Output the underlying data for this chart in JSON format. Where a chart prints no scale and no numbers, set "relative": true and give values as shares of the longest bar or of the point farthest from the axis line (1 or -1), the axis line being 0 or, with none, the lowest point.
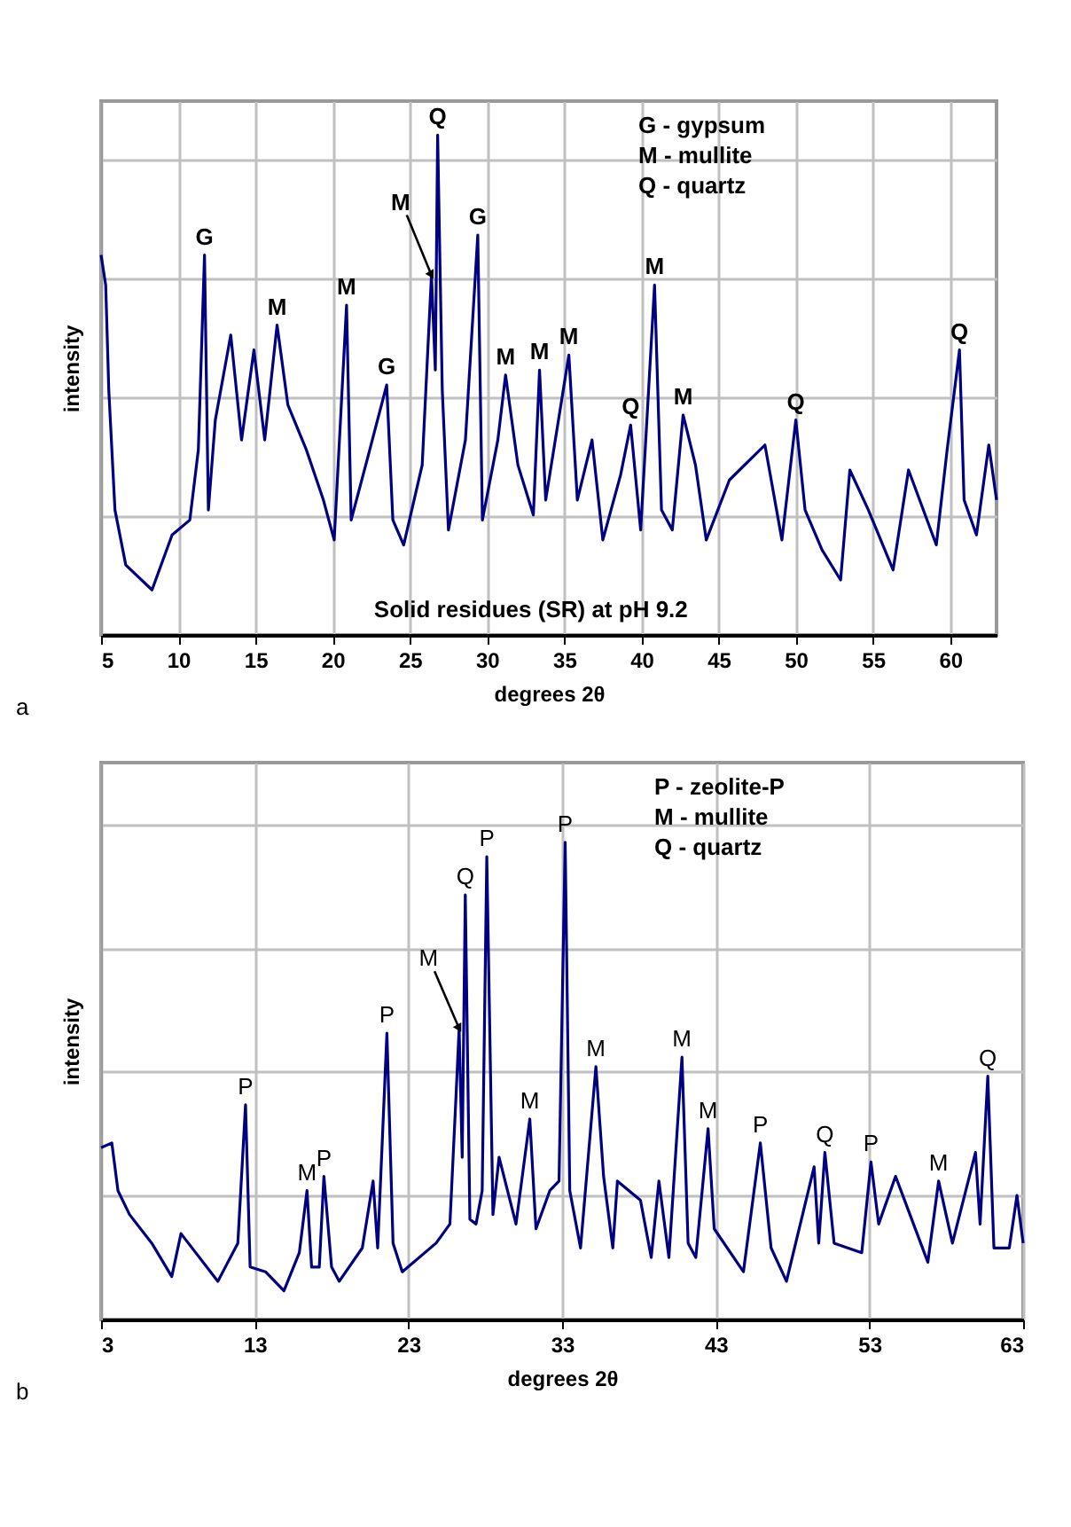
{
  "chart_data": [
    {
      "type": "line",
      "title": "a",
      "xlabel": "degrees 2θ",
      "ylabel": "intensity",
      "relative": true,
      "color": "#000080",
      "grid": true,
      "xlim": [
        5,
        63
      ],
      "xticks": [
        5,
        10,
        15,
        20,
        25,
        30,
        35,
        40,
        45,
        50,
        55,
        60
      ],
      "x": [
        5.0,
        5.3,
        5.5,
        5.9,
        6.6,
        8.3,
        9.6,
        10.75,
        11.3,
        11.7,
        11.95,
        12.4,
        13.4,
        14.1,
        14.9,
        15.6,
        16.4,
        17.1,
        18.3,
        19.4,
        20.1,
        20.9,
        21.2,
        22.4,
        23.5,
        23.9,
        24.6,
        25.8,
        26.4,
        26.65,
        26.8,
        27.1,
        27.5,
        28.6,
        29.4,
        29.7,
        30.7,
        31.2,
        32.0,
        33.0,
        33.4,
        33.8,
        35.3,
        35.85,
        36.8,
        37.5,
        38.65,
        39.3,
        39.95,
        40.85,
        41.3,
        42.0,
        42.7,
        43.5,
        44.2,
        45.7,
        48.0,
        49.1,
        50.0,
        50.6,
        51.7,
        52.9,
        53.5,
        54.7,
        56.3,
        57.3,
        59.1,
        59.8,
        60.6,
        60.9,
        61.7,
        62.5,
        63.0
      ],
      "values": [
        0.76,
        0.7,
        0.49,
        0.25,
        0.14,
        0.09,
        0.2,
        0.23,
        0.37,
        0.76,
        0.25,
        0.43,
        0.6,
        0.39,
        0.57,
        0.39,
        0.62,
        0.46,
        0.37,
        0.27,
        0.19,
        0.66,
        0.23,
        0.37,
        0.5,
        0.23,
        0.18,
        0.34,
        0.72,
        0.53,
        1,
        0.49,
        0.21,
        0.39,
        0.8,
        0.23,
        0.39,
        0.52,
        0.34,
        0.24,
        0.53,
        0.27,
        0.56,
        0.27,
        0.39,
        0.19,
        0.32,
        0.42,
        0.21,
        0.7,
        0.25,
        0.21,
        0.44,
        0.34,
        0.19,
        0.31,
        0.38,
        0.19,
        0.43,
        0.25,
        0.17,
        0.11,
        0.33,
        0.25,
        0.13,
        0.33,
        0.18,
        0.37,
        0.57,
        0.27,
        0.2,
        0.38,
        0.27
      ],
      "annotations": [
        "G - gypsum",
        "M - mullite",
        "Q - quartz",
        "Solid residues (SR) at pH 9.2",
        {
          "text": "G",
          "x": 11.7,
          "y": 0.76
        },
        {
          "text": "M",
          "x": 16.4,
          "y": 0.62
        },
        {
          "text": "M",
          "x": 20.9,
          "y": 0.66
        },
        {
          "text": "G",
          "x": 23.5,
          "y": 0.5
        },
        {
          "text": "M",
          "x": 26.4,
          "y": 0.72
        },
        {
          "text": "Q",
          "x": 26.8,
          "y": 1
        },
        {
          "text": "G",
          "x": 29.4,
          "y": 0.8
        },
        {
          "text": "M",
          "x": 31.2,
          "y": 0.52
        },
        {
          "text": "M",
          "x": 33.4,
          "y": 0.53
        },
        {
          "text": "M",
          "x": 35.3,
          "y": 0.56
        },
        {
          "text": "Q",
          "x": 39.3,
          "y": 0.42
        },
        {
          "text": "M",
          "x": 40.85,
          "y": 0.7
        },
        {
          "text": "M",
          "x": 42.7,
          "y": 0.44
        },
        {
          "text": "Q",
          "x": 50.0,
          "y": 0.43
        },
        {
          "text": "Q",
          "x": 60.6,
          "y": 0.57
        }
      ]
    },
    {
      "type": "line",
      "title": "b",
      "xlabel": "degrees 2θ",
      "ylabel": "intensity",
      "relative": true,
      "color": "#000080",
      "grid": true,
      "xlim": [
        3,
        63
      ],
      "xticks": [
        3,
        13,
        23,
        33,
        43,
        53,
        63
      ],
      "x": [
        3.0,
        3.7,
        4.1,
        4.85,
        6.3,
        7.6,
        8.2,
        10.6,
        11.9,
        12.4,
        12.7,
        13.7,
        14.9,
        15.9,
        16.4,
        16.7,
        17.2,
        17.5,
        18.0,
        18.5,
        20.0,
        20.7,
        21.0,
        21.6,
        22.0,
        22.6,
        24.8,
        25.7,
        26.1,
        26.3,
        26.5,
        26.7,
        27.0,
        27.4,
        27.8,
        28.1,
        28.5,
        28.9,
        30.0,
        30.9,
        31.3,
        32.2,
        32.8,
        33.2,
        33.5,
        34.2,
        35.2,
        35.7,
        36.3,
        36.6,
        38.1,
        38.8,
        39.3,
        39.95,
        40.8,
        41.2,
        41.7,
        42.5,
        42.9,
        44.8,
        45.9,
        46.6,
        47.6,
        49.4,
        49.7,
        50.1,
        50.7,
        52.5,
        53.1,
        53.6,
        54.7,
        56.8,
        57.5,
        58.4,
        59.9,
        60.2,
        60.7,
        61.1,
        62.1,
        62.6,
        63.0
      ],
      "values": [
        0.36,
        0.37,
        0.27,
        0.22,
        0.16,
        0.09,
        0.18,
        0.08,
        0.16,
        0.45,
        0.11,
        0.1,
        0.06,
        0.14,
        0.27,
        0.11,
        0.11,
        0.3,
        0.11,
        0.08,
        0.15,
        0.29,
        0.15,
        0.6,
        0.16,
        0.1,
        0.16,
        0.2,
        0.47,
        0.61,
        0.34,
        0.89,
        0.21,
        0.2,
        0.27,
        0.97,
        0.22,
        0.34,
        0.2,
        0.42,
        0.19,
        0.27,
        0.29,
        1,
        0.27,
        0.15,
        0.53,
        0.3,
        0.15,
        0.29,
        0.25,
        0.13,
        0.29,
        0.13,
        0.55,
        0.16,
        0.13,
        0.4,
        0.19,
        0.1,
        0.37,
        0.15,
        0.08,
        0.32,
        0.16,
        0.35,
        0.16,
        0.14,
        0.33,
        0.2,
        0.3,
        0.12,
        0.29,
        0.16,
        0.35,
        0.2,
        0.51,
        0.15,
        0.15,
        0.26,
        0.16
      ],
      "annotations": [
        "P - zeolite-P",
        "M - mullite",
        "Q - quartz",
        {
          "text": "P",
          "x": 12.4,
          "y": 0.45
        },
        {
          "text": "M",
          "x": 16.4,
          "y": 0.27
        },
        {
          "text": "P",
          "x": 17.5,
          "y": 0.3
        },
        {
          "text": "P",
          "x": 21.6,
          "y": 0.6
        },
        {
          "text": "M",
          "x": 26.3,
          "y": 0.61
        },
        {
          "text": "Q",
          "x": 26.7,
          "y": 0.89
        },
        {
          "text": "P",
          "x": 28.1,
          "y": 0.97
        },
        {
          "text": "M",
          "x": 30.9,
          "y": 0.42
        },
        {
          "text": "P",
          "x": 33.2,
          "y": 1
        },
        {
          "text": "M",
          "x": 35.2,
          "y": 0.53
        },
        {
          "text": "M",
          "x": 40.8,
          "y": 0.55
        },
        {
          "text": "M",
          "x": 42.5,
          "y": 0.4
        },
        {
          "text": "P",
          "x": 45.9,
          "y": 0.37
        },
        {
          "text": "Q",
          "x": 50.1,
          "y": 0.35
        },
        {
          "text": "P",
          "x": 53.1,
          "y": 0.33
        },
        {
          "text": "M",
          "x": 57.5,
          "y": 0.29
        },
        {
          "text": "Q",
          "x": 60.7,
          "y": 0.51
        }
      ]
    }
  ]
}
